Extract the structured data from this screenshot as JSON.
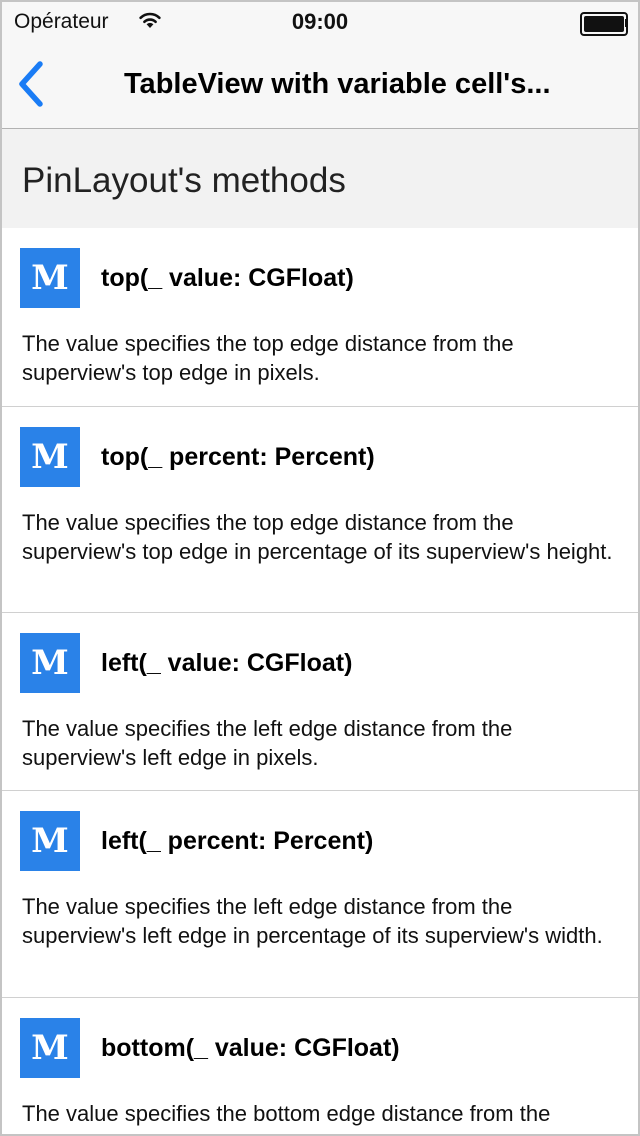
{
  "status_bar": {
    "carrier": "Opérateur",
    "time": "09:00"
  },
  "nav": {
    "title": "TableView with variable cell's..."
  },
  "section": {
    "title": "PinLayout's methods"
  },
  "methods": [
    {
      "icon": "M",
      "name": "top(_ value: CGFloat)",
      "description": "The value specifies the top edge distance from the superview's top edge in pixels."
    },
    {
      "icon": "M",
      "name": "top(_ percent: Percent)",
      "description": "The value specifies the top edge distance from the superview's top edge in percentage of its superview's height."
    },
    {
      "icon": "M",
      "name": "left(_ value: CGFloat)",
      "description": "The value specifies the left edge distance from the superview's left edge in pixels."
    },
    {
      "icon": "M",
      "name": "left(_ percent: Percent)",
      "description": "The value specifies the left edge distance from the superview's left edge in percentage of its superview's width."
    },
    {
      "icon": "M",
      "name": "bottom(_ value: CGFloat)",
      "description": "The value specifies the bottom edge distance from the superview's bottom edge in pixels."
    }
  ],
  "colors": {
    "accent": "#1a7cf5",
    "icon_background": "#2a82e8"
  }
}
